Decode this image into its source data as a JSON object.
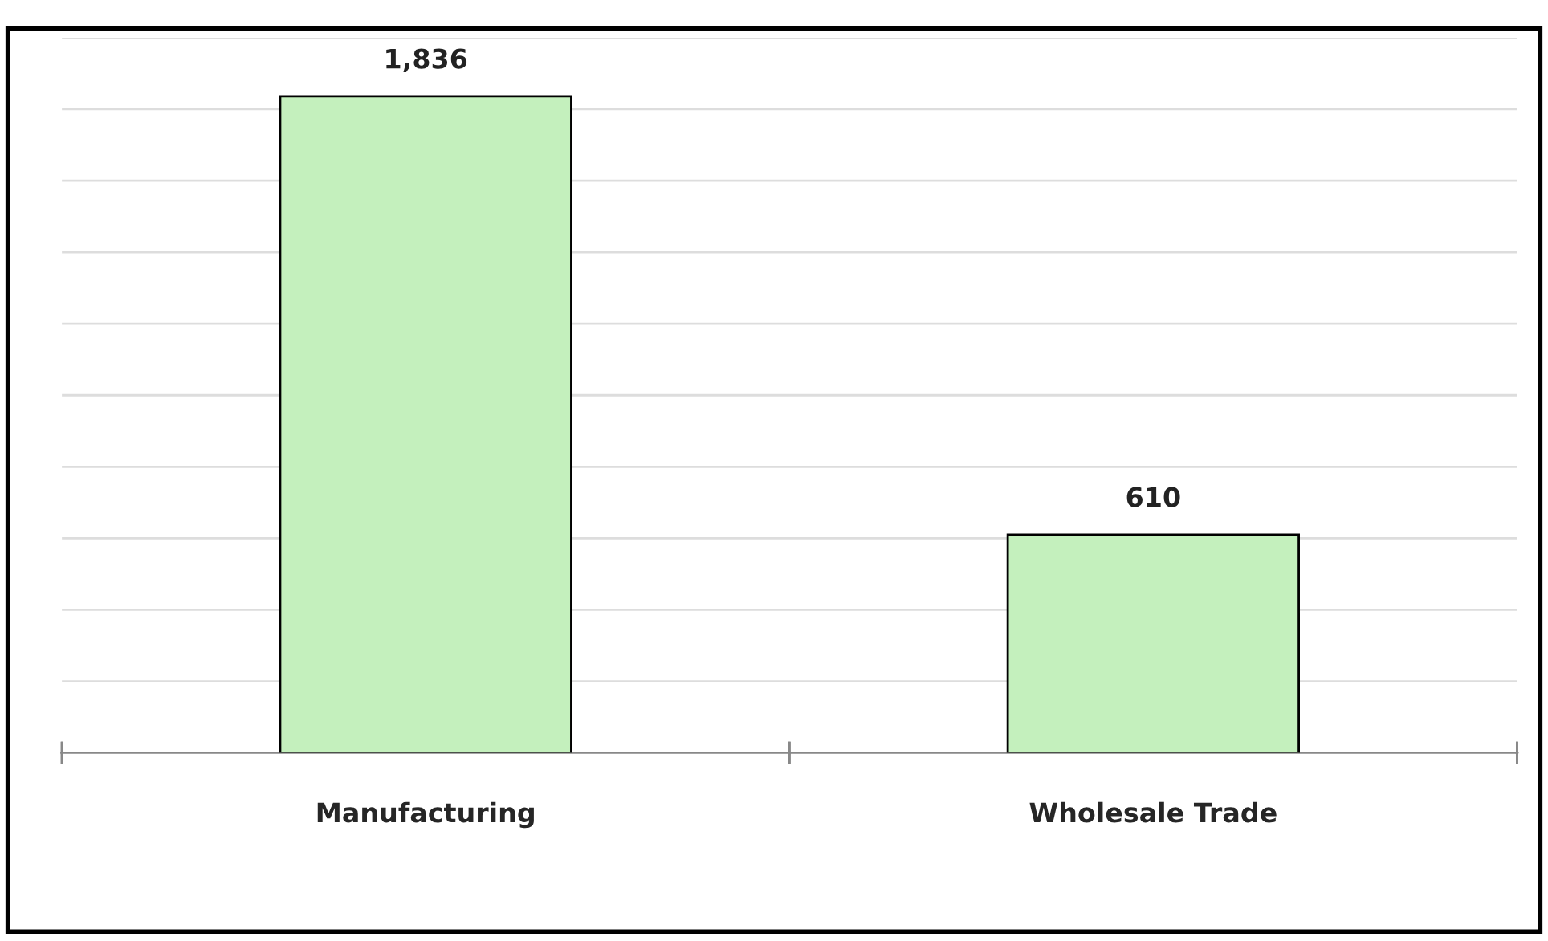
{
  "chart_data": {
    "type": "bar",
    "categories": [
      "Manufacturing",
      "Wholesale Trade"
    ],
    "values": [
      1836,
      610
    ],
    "value_labels": [
      "1,836",
      "610"
    ],
    "color": "#c4f0bd",
    "ylim": [
      0,
      2000
    ],
    "yticks": [
      {
        "value": 0,
        "label": null
      },
      {
        "value": 200,
        "label": null
      },
      {
        "value": 400,
        "label": null
      },
      {
        "value": 600,
        "label": null
      },
      {
        "value": 800,
        "label": null
      },
      {
        "value": 1000,
        "label": null
      },
      {
        "value": 1200,
        "label": null
      },
      {
        "value": 1400,
        "label": null
      },
      {
        "value": 1600,
        "label": null
      },
      {
        "value": 1800,
        "label": null
      },
      {
        "value": 2000,
        "label": null
      }
    ],
    "tick_labels": "x",
    "grid": "y",
    "legend": false
  }
}
